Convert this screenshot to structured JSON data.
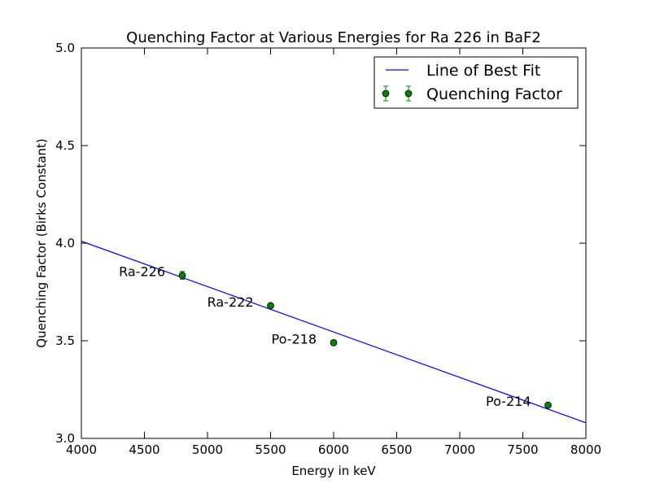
{
  "chart_data": {
    "type": "scatter",
    "title": "Quenching Factor at Various Energies for Ra 226 in BaF2",
    "xlabel": "Energy in keV",
    "ylabel": "Quenching Factor (Birks Constant)",
    "xlim": [
      4000,
      8000
    ],
    "ylim": [
      3.0,
      5.0
    ],
    "xticks": [
      4000,
      4500,
      5000,
      5500,
      6000,
      6500,
      7000,
      7500,
      8000
    ],
    "yticks": [
      3.0,
      3.5,
      4.0,
      4.5,
      5.0
    ],
    "xtick_labels": [
      "4000",
      "4500",
      "5000",
      "5500",
      "6000",
      "6500",
      "7000",
      "7500",
      "8000"
    ],
    "ytick_labels": [
      "3.0",
      "3.5",
      "4.0",
      "4.5",
      "5.0"
    ],
    "grid": false,
    "legend_position": "top-right",
    "series": [
      {
        "name": "Quenching Factor",
        "kind": "scatter-errorbar",
        "color": "#008000",
        "points": [
          {
            "x": 4800,
            "y": 3.835,
            "err": 0.02,
            "label": "Ra-226"
          },
          {
            "x": 5500,
            "y": 3.68,
            "err": 0.012,
            "label": "Ra-222"
          },
          {
            "x": 6000,
            "y": 3.49,
            "err": 0.01,
            "label": "Po-218"
          },
          {
            "x": 7700,
            "y": 3.17,
            "err": 0.01,
            "label": "Po-214"
          }
        ]
      },
      {
        "name": "Line of Best Fit",
        "kind": "line",
        "color": "#0000ff",
        "x": [
          4000,
          8000
        ],
        "y": [
          4.01,
          3.08
        ]
      }
    ]
  }
}
